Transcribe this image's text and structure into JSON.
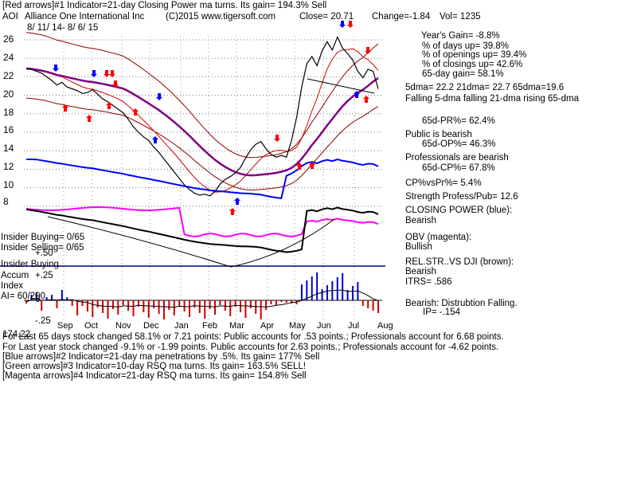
{
  "header": {
    "line1": "[Red arrows]#1 Indicator=21-day Closing Power ma turns. Its gain= 194.3% Sell",
    "symbol": "AOI",
    "company": "Alliance One International Inc",
    "copyright": "(C)2015 www.tigersoft.com",
    "close": "Close=  20.71",
    "change": "Change=-1.84",
    "vol": "Vol= 1235",
    "date_range": "8/ 11/ 14-  8/ 6/ 15"
  },
  "price_ticks": [
    "26",
    "24",
    "22",
    "20",
    "18",
    "16",
    "14",
    "12",
    "10",
    "8"
  ],
  "months": [
    "Sep",
    "Oct",
    "Nov",
    "Dec",
    "Jan",
    "Feb",
    "Mar",
    "Apr",
    "May",
    "Jun",
    "Jul",
    "Aug"
  ],
  "insider": {
    "buying": "Insider Buying= 0/65",
    "selling": "Insider Selling= 0/65",
    "section_label": "Insider Buying",
    "plus50": "+.50"
  },
  "accum": {
    "label": "Accum",
    "plus25": "+.25",
    "index_label": "Index",
    "ai": "AI= 60/200",
    "zero": "0",
    "minus25": "-.25",
    "clipped": "174.22"
  },
  "stats": {
    "years_gain": "Year's Gain= -8.8%",
    "pct_days_up": "% of days up= 39.8%",
    "pct_openings_up": "% of openings up= 39.4%",
    "pct_closings_up": "% of closings up= 42.6%",
    "gain_65": "65-day gain= 58.1%",
    "dma": "5dma= 22.2  21dma= 22.7  65dma=19.6",
    "dma_trend": "Falling 5-dma  falling 21-dma  rising 65-dma",
    "pr65": "65d-PR%= 62.4%",
    "public": "Public is bearish",
    "op65": "65d-OP%= 46.3%",
    "professionals": "Professionals are bearish",
    "cp65": "65d-CP%= 67.8%",
    "cp_vs_pr": "CP%vsPr%=  5.4%",
    "strength": "Strength Profess/Pub= 12.6",
    "closing_power": "CLOSING POWER (blue):",
    "closing_power_val": "Bearish",
    "obv": "OBV (magenta):",
    "obv_val": "Bullish",
    "relstr": "REL.STR..VS DJI (brown):",
    "relstr_val": "Bearish",
    "itrs": "ITRS= .586",
    "bearish_dist": "Bearish: Distrubtion Falling.",
    "ip": "IP= -.154"
  },
  "bottom": {
    "line1": "For Last 65 days stock changed  58.1% or  7.21 points:  Public accounts for  .53 points.;  Professionals account for  6.68 points.",
    "line2": "For Last year stock changed -9.1% or -1.99 points.  Public accounts for  2.63 points.;  Professionals account for -4.62 points.",
    "line3": "[Blue arrows]#2 Indicator=21-day ma penetrations by .5%. Its gain= 177% Sell",
    "line4": "[Green arrows]#3 Indicator=10-day RSQ ma turns. Its gain= 163.5% SELL!",
    "line5": "[Magenta arrows]#4 Indicator=21-day RSQ ma turns. Its gain= 154.8% Sell"
  },
  "colors": {
    "price": "#000000",
    "ma21": "#cc0000",
    "ma65": "#800080",
    "closing_power": "#0000ff",
    "obv": "#ff00ff",
    "rel_str": "#8b4513",
    "accum_pos": "#0000cc",
    "accum_neg": "#cc0000",
    "divider": "#000080",
    "red_arrow": "#ff0000",
    "blue_arrow": "#0000ff",
    "band": "#8b0000"
  },
  "chart_data": {
    "type": "line",
    "series": [
      {
        "values": [
          22.9,
          22.8,
          22.6,
          22.4,
          22.0,
          21.6,
          21.1,
          21.4,
          20.9,
          20.7,
          20.5,
          20.2,
          20.3,
          20.6,
          20.1,
          19.6,
          19.3,
          18.9,
          18.5,
          18.1,
          17.4,
          16.6,
          16.0,
          15.5,
          15.1,
          14.4,
          13.8,
          13.1,
          12.4,
          11.7,
          11.0,
          10.3,
          9.8,
          9.4,
          9.2,
          9.3,
          9.1,
          9.6,
          10.4,
          10.9,
          11.2,
          11.6,
          12.2,
          13.2,
          14.1,
          14.7,
          15.0,
          14.2,
          13.6,
          13.3,
          13.5,
          13.3,
          15.1,
          17.6,
          20.9,
          23.4,
          24.2,
          23.2,
          24.8,
          25.8,
          24.9,
          26.3,
          25.1,
          24.5,
          23.8,
          22.6,
          21.9,
          22.8,
          22.6,
          20.7
        ]
      }
    ],
    "ylim": [
      7,
      27
    ]
  }
}
